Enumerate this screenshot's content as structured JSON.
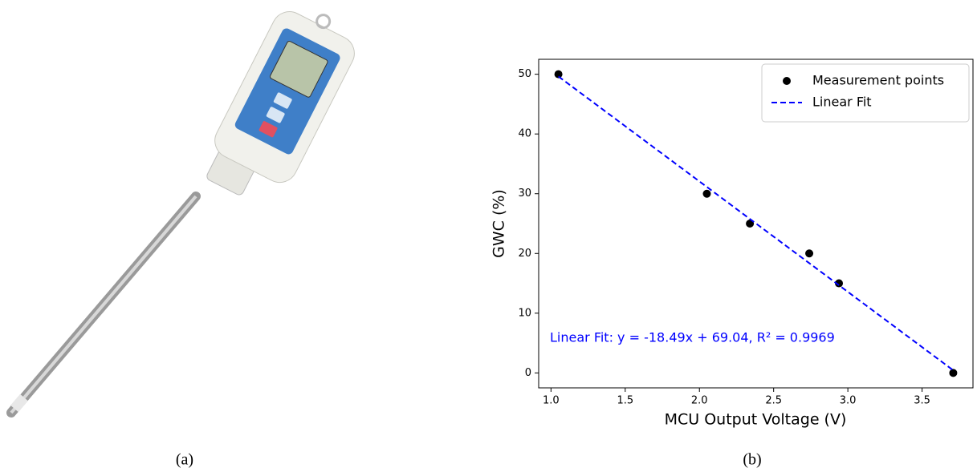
{
  "chart_data": {
    "type": "scatter",
    "xlabel": "MCU Output Voltage (V)",
    "ylabel": "GWC (%)",
    "series": [
      {
        "name": "Measurement points",
        "type": "scatter",
        "color": "#000000",
        "x": [
          1.05,
          2.05,
          2.34,
          2.74,
          2.94,
          3.71
        ],
        "values": [
          50,
          30,
          25,
          20,
          15,
          0
        ]
      },
      {
        "name": "Linear Fit",
        "type": "line",
        "color": "#0000ff",
        "linestyle": "dashed",
        "x": [
          1.05,
          3.71
        ],
        "values": [
          49.63,
          0.44
        ]
      }
    ],
    "annotation": "Linear Fit: y = -18.49x + 69.04, R² = 0.9969",
    "xlim": [
      0.917,
      3.843
    ],
    "xticks": [
      {
        "value": 1,
        "label": "1.0"
      },
      {
        "value": 1.5,
        "label": "1.5"
      },
      {
        "value": 2,
        "label": "2.0"
      },
      {
        "value": 2.5,
        "label": "2.5"
      },
      {
        "value": 3,
        "label": "3.0"
      },
      {
        "value": 3.5,
        "label": "3.5"
      }
    ],
    "ylim": [
      -2.5,
      52.5
    ],
    "yticks": [
      0,
      10,
      20,
      30,
      40,
      50
    ],
    "legend": "upper right"
  },
  "captions": [
    "(a)",
    "(b)"
  ]
}
